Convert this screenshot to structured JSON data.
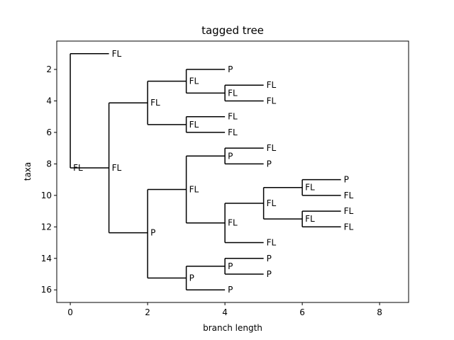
{
  "chart_data": {
    "type": "tree",
    "title": "tagged tree",
    "xlabel": "branch length",
    "ylabel": "taxa",
    "xlim": [
      -0.35,
      8.75
    ],
    "ylim": [
      16.8,
      0.2
    ],
    "xticks": [
      "0",
      "2",
      "4",
      "6",
      "8"
    ],
    "yticks": [
      "2",
      "4",
      "6",
      "8",
      "10",
      "12",
      "14",
      "16"
    ],
    "xtick_values": [
      0,
      2,
      4,
      6,
      8
    ],
    "ytick_values": [
      2,
      4,
      6,
      8,
      10,
      12,
      14,
      16
    ],
    "grid": false,
    "nodes": [
      {
        "id": "root",
        "parent": null,
        "x": 0,
        "y": 8.25,
        "label": "FL"
      },
      {
        "id": "t1",
        "parent": "root",
        "x": 1,
        "y": 1,
        "label": "FL"
      },
      {
        "id": "n_b",
        "parent": "root",
        "x": 1,
        "y": 8.25,
        "label": "FL"
      },
      {
        "id": "n_c",
        "parent": "n_b",
        "x": 2,
        "y": 4.125,
        "label": "FL"
      },
      {
        "id": "n_d",
        "parent": "n_c",
        "x": 3,
        "y": 2.75,
        "label": "FL"
      },
      {
        "id": "t2",
        "parent": "n_d",
        "x": 4,
        "y": 2,
        "label": "P"
      },
      {
        "id": "n_e",
        "parent": "n_d",
        "x": 4,
        "y": 3.5,
        "label": "FL"
      },
      {
        "id": "t3",
        "parent": "n_e",
        "x": 5,
        "y": 3,
        "label": "FL"
      },
      {
        "id": "t4",
        "parent": "n_e",
        "x": 5,
        "y": 4,
        "label": "FL"
      },
      {
        "id": "n_f",
        "parent": "n_c",
        "x": 3,
        "y": 5.5,
        "label": "FL"
      },
      {
        "id": "t5",
        "parent": "n_f",
        "x": 4,
        "y": 5,
        "label": "FL"
      },
      {
        "id": "t6",
        "parent": "n_f",
        "x": 4,
        "y": 6,
        "label": "FL"
      },
      {
        "id": "n_g",
        "parent": "n_b",
        "x": 2,
        "y": 12.375,
        "label": "P"
      },
      {
        "id": "n_h",
        "parent": "n_g",
        "x": 3,
        "y": 9.625,
        "label": "FL"
      },
      {
        "id": "n_i",
        "parent": "n_h",
        "x": 4,
        "y": 7.5,
        "label": "P"
      },
      {
        "id": "t7",
        "parent": "n_i",
        "x": 5,
        "y": 7,
        "label": "FL"
      },
      {
        "id": "t8",
        "parent": "n_i",
        "x": 5,
        "y": 8,
        "label": "P"
      },
      {
        "id": "n_j",
        "parent": "n_h",
        "x": 4,
        "y": 11.75,
        "label": "FL"
      },
      {
        "id": "n_k",
        "parent": "n_j",
        "x": 5,
        "y": 10.5,
        "label": "FL"
      },
      {
        "id": "n_l",
        "parent": "n_k",
        "x": 6,
        "y": 9.5,
        "label": "FL"
      },
      {
        "id": "t9",
        "parent": "n_l",
        "x": 7,
        "y": 9,
        "label": "P"
      },
      {
        "id": "t10",
        "parent": "n_l",
        "x": 7,
        "y": 10,
        "label": "FL"
      },
      {
        "id": "n_m",
        "parent": "n_k",
        "x": 6,
        "y": 11.5,
        "label": "FL"
      },
      {
        "id": "t11",
        "parent": "n_m",
        "x": 7,
        "y": 11,
        "label": "FL"
      },
      {
        "id": "t12",
        "parent": "n_m",
        "x": 7,
        "y": 12,
        "label": "FL"
      },
      {
        "id": "t13",
        "parent": "n_j",
        "x": 5,
        "y": 13,
        "label": "FL"
      },
      {
        "id": "n_n",
        "parent": "n_g",
        "x": 3,
        "y": 15.25,
        "label": "P"
      },
      {
        "id": "n_o",
        "parent": "n_n",
        "x": 4,
        "y": 14.5,
        "label": "P"
      },
      {
        "id": "t14",
        "parent": "n_o",
        "x": 5,
        "y": 14,
        "label": "P"
      },
      {
        "id": "t15",
        "parent": "n_o",
        "x": 5,
        "y": 15,
        "label": "P"
      },
      {
        "id": "t16",
        "parent": "n_n",
        "x": 4,
        "y": 16,
        "label": "P"
      }
    ]
  }
}
